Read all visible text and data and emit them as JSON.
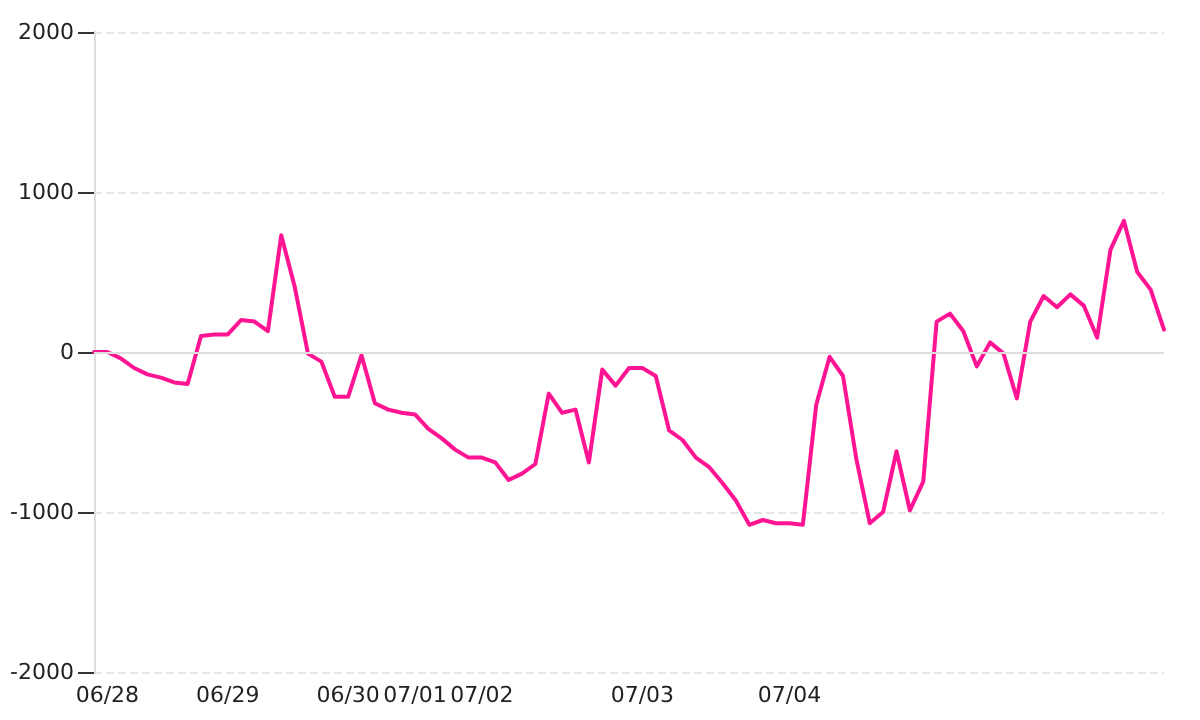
{
  "chart_data": {
    "type": "line",
    "categories": [
      null,
      "06/28",
      null,
      null,
      null,
      null,
      null,
      null,
      null,
      null,
      "06/29",
      null,
      null,
      null,
      null,
      null,
      null,
      null,
      null,
      "06/30",
      null,
      null,
      null,
      null,
      "07/01",
      null,
      null,
      null,
      null,
      "07/02",
      null,
      null,
      null,
      null,
      null,
      null,
      null,
      null,
      null,
      null,
      null,
      "07/03",
      null,
      null,
      null,
      null,
      null,
      null,
      null,
      null,
      null,
      null,
      "07/04",
      null,
      null,
      null,
      null,
      null,
      null,
      null,
      null,
      null,
      null,
      null,
      null,
      null,
      null,
      null,
      null,
      null,
      null,
      null,
      null,
      null,
      null,
      null,
      null,
      null,
      null,
      null,
      null
    ],
    "series": [
      {
        "color": "#ff1493",
        "values": [
          0,
          0,
          -40,
          -100,
          -140,
          -160,
          -190,
          -200,
          100,
          110,
          110,
          200,
          190,
          130,
          730,
          410,
          -10,
          -60,
          -280,
          -280,
          -20,
          -320,
          -360,
          -380,
          -390,
          -480,
          -540,
          -610,
          -660,
          -660,
          -690,
          -800,
          -760,
          -700,
          -260,
          -380,
          -360,
          -690,
          -110,
          -210,
          -100,
          -100,
          -150,
          -490,
          -550,
          -660,
          -720,
          -820,
          -930,
          -1080,
          -1050,
          -1070,
          -1070,
          -1080,
          -330,
          -30,
          -150,
          -670,
          -1070,
          -1000,
          -620,
          -990,
          -810,
          190,
          240,
          130,
          -90,
          60,
          -10,
          -290,
          190,
          350,
          280,
          360,
          290,
          90,
          640,
          820,
          500,
          390,
          140
        ]
      }
    ],
    "ylim": [
      -2000,
      2000
    ],
    "yticks": [
      -2000,
      -1000,
      0,
      1000,
      2000
    ],
    "grid": "y",
    "marker": "none",
    "line_style": "solid",
    "ref_lines": [
      {
        "axis": "y",
        "value": 0,
        "color": "#dddddd"
      }
    ]
  }
}
